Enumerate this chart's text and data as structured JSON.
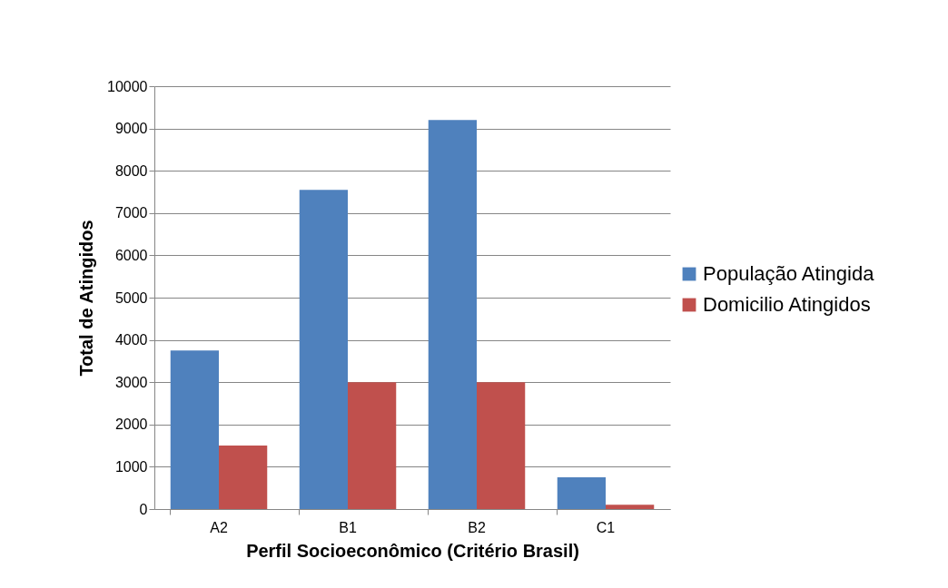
{
  "chart_data": {
    "type": "bar",
    "xlabel": "Perfil Socioeconômico (Critério Brasil)",
    "ylabel": "Total de Atingidos",
    "categories": [
      "A2",
      "B1",
      "B2",
      "C1"
    ],
    "series": [
      {
        "name": "População Atingida",
        "color": "#4f81bd",
        "values": [
          3750,
          7550,
          9200,
          750
        ]
      },
      {
        "name": "Domicilio Atingidos",
        "color": "#c0504d",
        "values": [
          1500,
          3000,
          3000,
          100
        ]
      }
    ],
    "ylim": [
      0,
      10000
    ],
    "yticks": [
      0,
      1000,
      2000,
      3000,
      4000,
      5000,
      6000,
      7000,
      8000,
      9000,
      10000
    ],
    "grid": "y",
    "legend": "right"
  }
}
